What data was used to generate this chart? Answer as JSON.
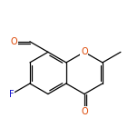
{
  "background_color": "#ffffff",
  "bond_color": "#000000",
  "atom_colors": {
    "O": "#dd4400",
    "F": "#1111cc",
    "C": "#000000"
  },
  "figsize": [
    1.52,
    1.52
  ],
  "dpi": 100,
  "lw": 0.9,
  "dbo": 0.013,
  "sc": 0.13,
  "bx": 0.37,
  "by": 0.5
}
